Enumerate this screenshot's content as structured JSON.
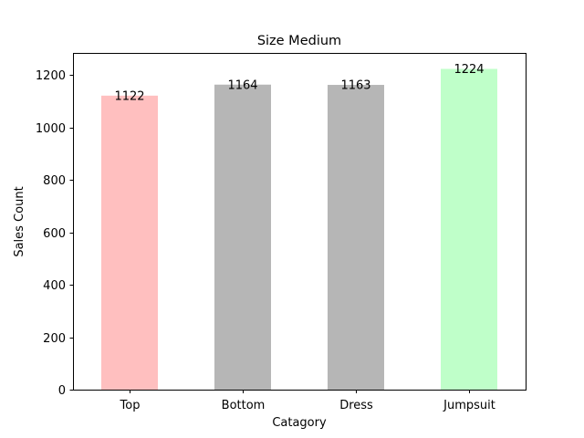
{
  "chart_data": {
    "type": "bar",
    "title": "Size Medium",
    "xlabel": "Catagory",
    "ylabel": "Sales Count",
    "categories": [
      "Top",
      "Bottom",
      "Dress",
      "Jumpsuit"
    ],
    "values": [
      1122,
      1164,
      1163,
      1224
    ],
    "bar_colors": [
      "#ffbfbf",
      "#b6b6b6",
      "#b6b6b6",
      "#bfffc9"
    ],
    "ylim": [
      0,
      1285
    ],
    "yticks": [
      0,
      200,
      400,
      600,
      800,
      1000,
      1200
    ],
    "data_labels": [
      "1122",
      "1164",
      "1163",
      "1224"
    ],
    "grid": false,
    "legend": "none"
  }
}
